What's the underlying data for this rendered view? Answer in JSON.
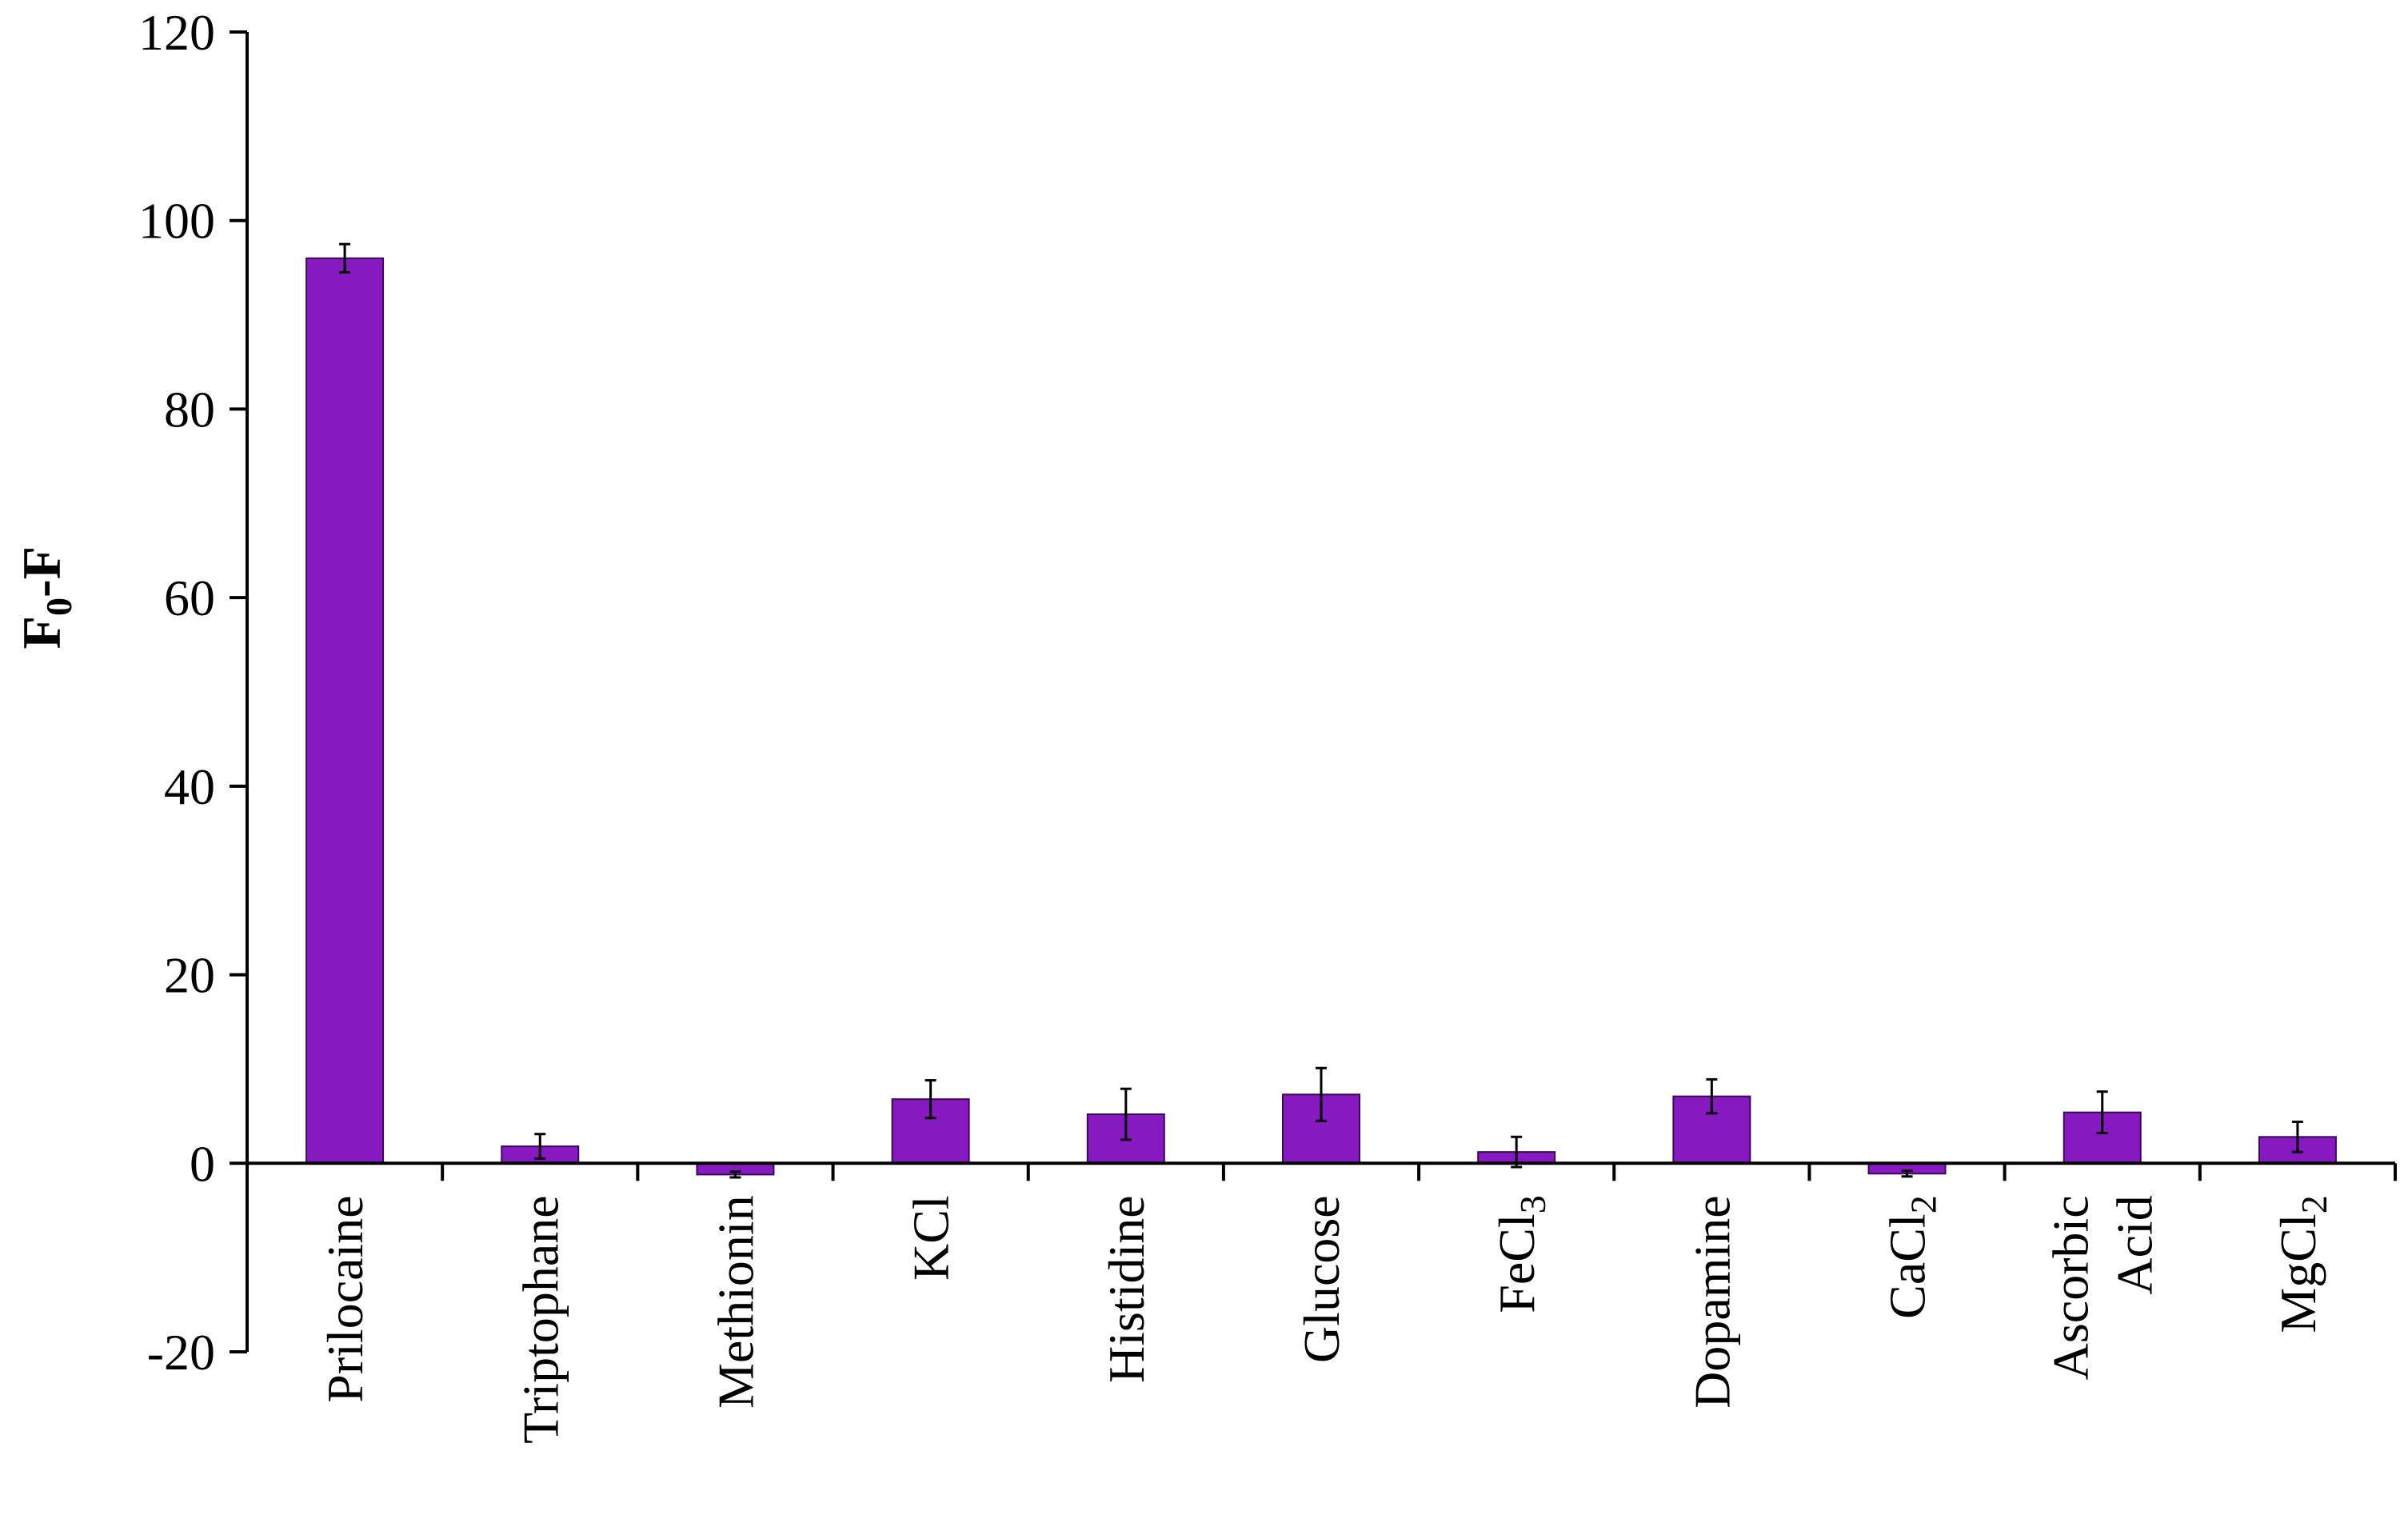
{
  "chart_data": {
    "type": "bar",
    "title": "",
    "xlabel": "",
    "ylabel": {
      "main": "F",
      "sub": "0",
      "tail": "-F"
    },
    "ylim": [
      -20,
      120
    ],
    "yticks": [
      -20,
      0,
      20,
      40,
      60,
      80,
      100,
      120
    ],
    "grid": false,
    "legend": "none",
    "bar_color": "#8619bf",
    "categories": [
      {
        "lines": [
          {
            "text": "Prilocaine",
            "sub": ""
          }
        ]
      },
      {
        "lines": [
          {
            "text": "Triptophane",
            "sub": ""
          }
        ]
      },
      {
        "lines": [
          {
            "text": "Methionin",
            "sub": ""
          }
        ]
      },
      {
        "lines": [
          {
            "text": "KCl",
            "sub": ""
          }
        ]
      },
      {
        "lines": [
          {
            "text": "Histidine",
            "sub": ""
          }
        ]
      },
      {
        "lines": [
          {
            "text": "Glucose",
            "sub": ""
          }
        ]
      },
      {
        "lines": [
          {
            "text": "FeCl",
            "sub": "3"
          }
        ]
      },
      {
        "lines": [
          {
            "text": "Dopamine",
            "sub": ""
          }
        ]
      },
      {
        "lines": [
          {
            "text": "CaCl",
            "sub": "2"
          }
        ]
      },
      {
        "lines": [
          {
            "text": "Ascorbic",
            "sub": ""
          },
          {
            "text": "Acid",
            "sub": ""
          }
        ]
      },
      {
        "lines": [
          {
            "text": "MgCl",
            "sub": "2"
          }
        ]
      }
    ],
    "values": [
      96,
      1.8,
      -1.2,
      6.8,
      5.2,
      7.3,
      1.2,
      7.1,
      -1.1,
      5.4,
      2.8
    ],
    "errors": [
      1.5,
      1.3,
      0.3,
      2.0,
      2.7,
      2.8,
      1.6,
      1.8,
      0.3,
      2.2,
      1.6
    ]
  }
}
